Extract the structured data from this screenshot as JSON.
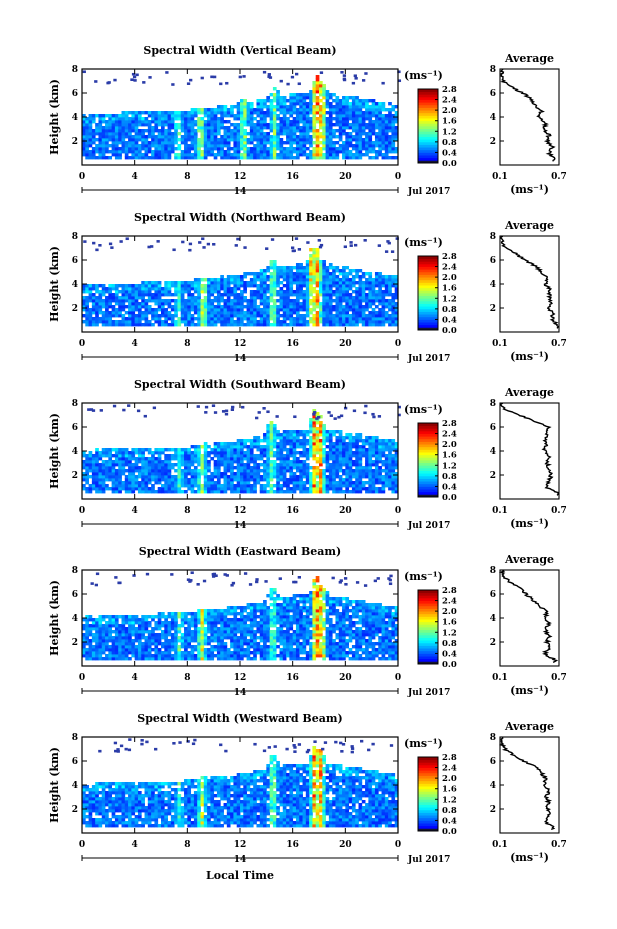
{
  "figure": {
    "xlabel": "Local Time",
    "date_label": "Jul 2017",
    "day_label": "14",
    "colorbar_unit": "(ms⁻¹)",
    "avg_title": "Average",
    "avg_xlabel": "(ms⁻¹)"
  },
  "chart_data": [
    {
      "type": "heatmap",
      "title": "Spectral Width (Vertical Beam)",
      "ylabel": "Height (km)",
      "xlim": [
        0,
        24
      ],
      "ylim": [
        0,
        8
      ],
      "xticks": [
        "0",
        "4",
        "8",
        "12",
        "16",
        "20",
        "0"
      ],
      "yticks": [
        "2",
        "4",
        "6",
        "8"
      ],
      "colorbar": {
        "range": [
          0.0,
          2.8
        ],
        "ticks": [
          "2.8",
          "2.4",
          "2.0",
          "1.6",
          "1.2",
          "0.8",
          "0.4",
          "0.0"
        ]
      },
      "cloud_top_km": {
        "x": [
          0,
          4,
          8,
          12,
          16,
          18,
          20,
          24
        ],
        "top": [
          4.3,
          4.4,
          4.6,
          5.1,
          5.9,
          6.0,
          5.8,
          5.0
        ]
      },
      "convective_cells": [
        {
          "t": 7.3,
          "top": 4.3,
          "peak": 1.5
        },
        {
          "t": 9.0,
          "top": 4.8,
          "peak": 2.0
        },
        {
          "t": 12.3,
          "top": 5.5,
          "peak": 1.8
        },
        {
          "t": 14.6,
          "top": 6.6,
          "peak": 1.6
        },
        {
          "t": 17.8,
          "top": 7.6,
          "peak": 2.8
        },
        {
          "t": 18.2,
          "top": 7.2,
          "peak": 2.6
        }
      ],
      "average_profile": {
        "xlim": [
          0.1,
          0.7
        ],
        "xticks": [
          "0.1",
          "0.7"
        ],
        "yticks": [
          "2",
          "4",
          "6",
          "8"
        ],
        "height_km": [
          0.5,
          1,
          1.5,
          2,
          2.5,
          3,
          3.5,
          4,
          4.5,
          5,
          5.5,
          6,
          6.5,
          7,
          7.5,
          8
        ],
        "width": [
          0.66,
          0.6,
          0.63,
          0.58,
          0.6,
          0.55,
          0.57,
          0.5,
          0.52,
          0.46,
          0.42,
          0.33,
          0.22,
          0.13,
          0.12,
          0.12
        ]
      }
    },
    {
      "type": "heatmap",
      "title": "Spectral Width (Northward Beam)",
      "ylabel": "Height (km)",
      "xlim": [
        0,
        24
      ],
      "ylim": [
        0,
        8
      ],
      "xticks": [
        "0",
        "4",
        "8",
        "12",
        "16",
        "20",
        "0"
      ],
      "yticks": [
        "2",
        "4",
        "6",
        "8"
      ],
      "colorbar": {
        "range": [
          0.0,
          2.8
        ],
        "ticks": [
          "2.8",
          "2.4",
          "2.0",
          "1.6",
          "1.2",
          "0.8",
          "0.4",
          "0.0"
        ]
      },
      "cloud_top_km": {
        "x": [
          0,
          4,
          8,
          12,
          16,
          18,
          20,
          24
        ],
        "top": [
          4.0,
          4.1,
          4.3,
          4.8,
          5.6,
          5.8,
          5.4,
          4.6
        ]
      },
      "convective_cells": [
        {
          "t": 7.3,
          "top": 4.0,
          "peak": 1.4
        },
        {
          "t": 9.2,
          "top": 4.6,
          "peak": 1.9
        },
        {
          "t": 14.5,
          "top": 6.1,
          "peak": 1.7
        },
        {
          "t": 17.5,
          "top": 7.3,
          "peak": 2.6
        },
        {
          "t": 17.9,
          "top": 7.0,
          "peak": 2.4
        }
      ],
      "average_profile": {
        "xlim": [
          0.1,
          0.7
        ],
        "xticks": [
          "0.1",
          "0.7"
        ],
        "yticks": [
          "2",
          "4",
          "6",
          "8"
        ],
        "height_km": [
          0.5,
          1,
          1.5,
          2,
          2.5,
          3,
          3.5,
          4,
          4.5,
          5,
          5.5,
          6,
          6.5,
          7,
          7.5,
          8
        ],
        "width": [
          0.7,
          0.63,
          0.64,
          0.6,
          0.62,
          0.6,
          0.61,
          0.56,
          0.58,
          0.52,
          0.46,
          0.36,
          0.26,
          0.16,
          0.12,
          0.12
        ]
      }
    },
    {
      "type": "heatmap",
      "title": "Spectral Width (Southward Beam)",
      "ylabel": "Height (km)",
      "xlim": [
        0,
        24
      ],
      "ylim": [
        0,
        8
      ],
      "xticks": [
        "0",
        "4",
        "8",
        "12",
        "16",
        "20",
        "0"
      ],
      "yticks": [
        "2",
        "4",
        "6",
        "8"
      ],
      "colorbar": {
        "range": [
          0.0,
          2.8
        ],
        "ticks": [
          "2.8",
          "2.4",
          "2.0",
          "1.6",
          "1.2",
          "0.8",
          "0.4",
          "0.0"
        ]
      },
      "cloud_top_km": {
        "x": [
          0,
          4,
          8,
          12,
          16,
          18,
          20,
          24
        ],
        "top": [
          4.1,
          4.2,
          4.4,
          4.9,
          5.8,
          5.9,
          5.6,
          4.8
        ]
      },
      "convective_cells": [
        {
          "t": 7.4,
          "top": 4.2,
          "peak": 1.4
        },
        {
          "t": 9.1,
          "top": 4.7,
          "peak": 1.9
        },
        {
          "t": 14.4,
          "top": 6.9,
          "peak": 1.7
        },
        {
          "t": 17.7,
          "top": 7.8,
          "peak": 2.8
        },
        {
          "t": 18.1,
          "top": 7.1,
          "peak": 2.5
        }
      ],
      "average_profile": {
        "xlim": [
          0.1,
          0.7
        ],
        "xticks": [
          "0.1",
          "0.7"
        ],
        "yticks": [
          "2",
          "4",
          "6",
          "8"
        ],
        "height_km": [
          0.5,
          1,
          1.5,
          2,
          2.5,
          3,
          3.5,
          4,
          4.5,
          5,
          5.5,
          6,
          6.5,
          7,
          7.5,
          8
        ],
        "width": [
          0.7,
          0.56,
          0.6,
          0.62,
          0.6,
          0.58,
          0.6,
          0.55,
          0.57,
          0.56,
          0.58,
          0.6,
          0.45,
          0.3,
          0.14,
          0.12
        ]
      }
    },
    {
      "type": "heatmap",
      "title": "Spectral Width (Eastward Beam)",
      "ylabel": "Height (km)",
      "xlim": [
        0,
        24
      ],
      "ylim": [
        0,
        8
      ],
      "xticks": [
        "0",
        "4",
        "8",
        "12",
        "16",
        "20",
        "0"
      ],
      "yticks": [
        "2",
        "4",
        "6",
        "8"
      ],
      "colorbar": {
        "range": [
          0.0,
          2.8
        ],
        "ticks": [
          "2.8",
          "2.4",
          "2.0",
          "1.6",
          "1.2",
          "0.8",
          "0.4",
          "0.0"
        ]
      },
      "cloud_top_km": {
        "x": [
          0,
          4,
          8,
          12,
          16,
          18,
          20,
          24
        ],
        "top": [
          4.2,
          4.3,
          4.5,
          5.0,
          5.9,
          6.0,
          5.7,
          4.9
        ]
      },
      "convective_cells": [
        {
          "t": 7.4,
          "top": 4.3,
          "peak": 1.5
        },
        {
          "t": 9.1,
          "top": 4.8,
          "peak": 2.0
        },
        {
          "t": 14.5,
          "top": 6.9,
          "peak": 1.6
        },
        {
          "t": 17.8,
          "top": 7.7,
          "peak": 2.8
        },
        {
          "t": 18.2,
          "top": 7.3,
          "peak": 2.6
        }
      ],
      "average_profile": {
        "xlim": [
          0.1,
          0.7
        ],
        "xticks": [
          "0.1",
          "0.7"
        ],
        "yticks": [
          "2",
          "4",
          "6",
          "8"
        ],
        "height_km": [
          0.5,
          1,
          1.5,
          2,
          2.5,
          3,
          3.5,
          4,
          4.5,
          5,
          5.5,
          6,
          6.5,
          7,
          7.5,
          8
        ],
        "width": [
          0.66,
          0.55,
          0.6,
          0.58,
          0.6,
          0.56,
          0.6,
          0.55,
          0.58,
          0.5,
          0.44,
          0.36,
          0.3,
          0.2,
          0.13,
          0.12
        ]
      }
    },
    {
      "type": "heatmap",
      "title": "Spectral Width (Westward Beam)",
      "ylabel": "Height (km)",
      "xlim": [
        0,
        24
      ],
      "ylim": [
        0,
        8
      ],
      "xticks": [
        "0",
        "4",
        "8",
        "12",
        "16",
        "20",
        "0"
      ],
      "yticks": [
        "2",
        "4",
        "6",
        "8"
      ],
      "colorbar": {
        "range": [
          0.0,
          2.8
        ],
        "ticks": [
          "2.8",
          "2.4",
          "2.0",
          "1.6",
          "1.2",
          "0.8",
          "0.4",
          "0.0"
        ]
      },
      "cloud_top_km": {
        "x": [
          0,
          4,
          8,
          12,
          16,
          18,
          20,
          24
        ],
        "top": [
          4.1,
          4.2,
          4.4,
          4.9,
          5.8,
          5.9,
          5.6,
          4.8
        ]
      },
      "convective_cells": [
        {
          "t": 7.4,
          "top": 4.2,
          "peak": 1.4
        },
        {
          "t": 9.1,
          "top": 4.7,
          "peak": 1.9
        },
        {
          "t": 14.5,
          "top": 6.8,
          "peak": 1.7
        },
        {
          "t": 17.7,
          "top": 7.6,
          "peak": 2.8
        },
        {
          "t": 18.1,
          "top": 7.1,
          "peak": 2.5
        }
      ],
      "average_profile": {
        "xlim": [
          0.1,
          0.7
        ],
        "xticks": [
          "0.1",
          "0.7"
        ],
        "yticks": [
          "2",
          "4",
          "6",
          "8"
        ],
        "height_km": [
          0.5,
          1,
          1.5,
          2,
          2.5,
          3,
          3.5,
          4,
          4.5,
          5,
          5.5,
          6,
          6.5,
          7,
          7.5,
          8
        ],
        "width": [
          0.64,
          0.55,
          0.6,
          0.58,
          0.6,
          0.57,
          0.6,
          0.55,
          0.57,
          0.52,
          0.46,
          0.34,
          0.24,
          0.15,
          0.12,
          0.12
        ]
      }
    }
  ]
}
